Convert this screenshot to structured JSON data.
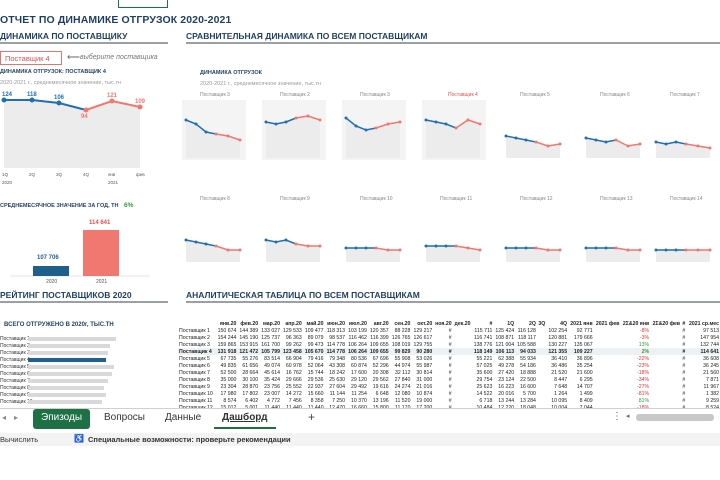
{
  "title": "ОТЧЕТ ПО ДИНАМИКЕ ОТГРУЗОК 2020-2021",
  "left_section": "ДИНАМИКА ПО ПОСТАВЩИКУ",
  "right_section": "СРАВНИТЕЛЬНАЯ ДИНАМИКА ПО ВСЕМ ПОСТАВЩИКАМ",
  "selector": {
    "value": "Поставщик 4",
    "hint": "выберите поставщика"
  },
  "main_chart": {
    "title": "ДИНАМИКА ОТГРУЗОК: ПОСТАВЩИК 4",
    "subtitle": "2020-2021 г., среднемесячное значение, тыс.тн",
    "values": [
      "124",
      "118",
      "106",
      "94",
      "121",
      "109"
    ],
    "x": [
      "1Q",
      "2Q",
      "3Q",
      "4Q",
      "янв",
      "фев"
    ],
    "years": [
      "2020",
      "2021"
    ]
  },
  "small_charts_header": {
    "title": "ДИНАМИКА ОТГРУЗОК",
    "subtitle": "2020-2021 г., среднемесячное значение, тыс.тн"
  },
  "suppliers": [
    "Поставщик 3",
    "Поставщик 2",
    "Поставщик 3",
    "Поставщик 4",
    "Поставщик 5",
    "Поставщик 6",
    "Поставщик 7",
    "Поставщик 8",
    "Поставщик 9",
    "Поставщик 10",
    "Поставщик 11",
    "Поставщик 12",
    "Поставщик 13",
    "Поставщик 14"
  ],
  "bar_chart": {
    "title": "СРЕДНЕМЕСЯЧНОЕ ЗНАЧЕНИЕ ЗА ГОД, ТН",
    "change": "6%",
    "v2020": "107 706",
    "v2021": "114 641",
    "y2020": "2020",
    "y2021": "2021"
  },
  "rating": {
    "section": "РЕЙТИНГ ПОСТАВЩИКОВ 2020",
    "title": "ВСЕГО ОТГРУЖЕНО В 2020г, ТЫС.ТН",
    "items": [
      "Поставщик 1",
      "Поставщик 2",
      "Поставщик 3",
      "Поставщик 4",
      "Поставщик 5",
      "Поставщик 6",
      "Поставщик 7",
      "Поставщик 8",
      "Поставщик 9",
      "Поставщик 10"
    ]
  },
  "table": {
    "section": "АНАЛИТИЧЕСКАЯ ТАБЛИЦА ПО ВСЕМ ПОСТАВЩИКАМ",
    "headers": [
      "",
      "янв.20",
      "фев.20",
      "мар.20",
      "апр.20",
      "май.20",
      "июн.20",
      "июл.20",
      "авг.20",
      "сен.20",
      "окт.20",
      "ноя.20",
      "дек.20",
      "#",
      "1Q",
      "2Q",
      "3Q",
      "4Q",
      "2021 янв",
      "2021 фев",
      "2Σ&20 янв",
      "2Σ&20 фев",
      "#",
      "2021 ср.мес"
    ],
    "rows": [
      [
        "Поставщик 1",
        "150 674",
        "144 389",
        "133 027",
        "129 533",
        "109 477",
        "118 313",
        "103 199",
        "120 357",
        "88 228",
        "129 217",
        "#",
        "",
        "115 711",
        "125 424",
        "116 128",
        "",
        "102 254",
        "92 771",
        "",
        "-8%",
        "",
        "#",
        "97 513"
      ],
      [
        "Поставщик 2",
        "154 244",
        "145 190",
        "125 737",
        "96 363",
        "89 079",
        "98 537",
        "116 462",
        "116 399",
        "126 765",
        "126 617",
        "#",
        "",
        "116 741",
        "108 871",
        "118 117",
        "",
        "120 881",
        "179 666",
        "",
        "-3%",
        "",
        "#",
        "147 954"
      ],
      [
        "Поставщик 3",
        "159 865",
        "153 915",
        "161 700",
        "99 262",
        "99 473",
        "114 778",
        "106 264",
        "109 655",
        "108 019",
        "129 755",
        "#",
        "",
        "138 776",
        "121 004",
        "105 588",
        "",
        "130 227",
        "135 067",
        "",
        "13%",
        "",
        "#",
        "132 744"
      ],
      [
        "Поставщик 4",
        "131 918",
        "121 472",
        "105 799",
        "123 458",
        "105 670",
        "114 778",
        "106 264",
        "109 655",
        "99 829",
        "90 280",
        "#",
        "",
        "118 149",
        "106 113",
        "94 033",
        "",
        "121 355",
        "109 227",
        "",
        "2%",
        "",
        "#",
        "114 641"
      ],
      [
        "Поставщик 5",
        "67 735",
        "55 276",
        "83 514",
        "66 904",
        "79 416",
        "79 348",
        "80 536",
        "67 696",
        "55 908",
        "53 026",
        "#",
        "",
        "55 221",
        "62 388",
        "55 934",
        "",
        "36 410",
        "36 896",
        "",
        "-22%",
        "",
        "#",
        "36 608"
      ],
      [
        "Поставщик 6",
        "49 835",
        "61 656",
        "49 074",
        "60 978",
        "52 064",
        "43 308",
        "60 874",
        "52 296",
        "44 974",
        "55 987",
        "#",
        "",
        "57 025",
        "49 278",
        "54 186",
        "",
        "36 486",
        "35 254",
        "",
        "-23%",
        "",
        "#",
        "36 245"
      ],
      [
        "Поставщик 7",
        "52 500",
        "28 664",
        "45 614",
        "16 762",
        "15 744",
        "18 242",
        "17 600",
        "20 308",
        "32 112",
        "30 814",
        "#",
        "",
        "35 600",
        "27 420",
        "18 888",
        "",
        "21 520",
        "21 600",
        "",
        "-18%",
        "",
        "#",
        "21 560"
      ],
      [
        "Поставщик 8",
        "35 000",
        "30 100",
        "35 424",
        "29 666",
        "29 536",
        "25 630",
        "29 120",
        "29 562",
        "27 840",
        "31 000",
        "#",
        "",
        "29 754",
        "23 124",
        "22 500",
        "",
        "8 447",
        "6 295",
        "",
        "-34%",
        "",
        "#",
        "7 871"
      ],
      [
        "Поставщик 9",
        "23 304",
        "28 870",
        "23 756",
        "25 552",
        "22 937",
        "27 604",
        "29 492",
        "19 616",
        "24 274",
        "21 016",
        "#",
        "",
        "25 623",
        "16 223",
        "16 600",
        "",
        "7 648",
        "14 707",
        "",
        "-27%",
        "",
        "#",
        "11 967"
      ],
      [
        "Поставщик 10",
        "17 980",
        "17 802",
        "23 007",
        "14 272",
        "15 660",
        "11 144",
        "11 254",
        "6 648",
        "12 080",
        "10 874",
        "#",
        "",
        "14 522",
        "20 016",
        "5 700",
        "",
        "1 264",
        "1 499",
        "",
        "-81%",
        "",
        "#",
        "1 382"
      ],
      [
        "Поставщик 11",
        "8 574",
        "6 402",
        "4 772",
        "7 456",
        "8 358",
        "7 250",
        "10 370",
        "13 196",
        "11 520",
        "19 000",
        "#",
        "",
        "6 718",
        "13 244",
        "13 284",
        "",
        "10 095",
        "8 409",
        "",
        "81%",
        "",
        "#",
        "9 259"
      ],
      [
        "Поставщик 12",
        "15 012",
        "5 001",
        "11 440",
        "11 440",
        "11 440",
        "12 470",
        "16 660",
        "15 800",
        "11 170",
        "17 200",
        "#",
        "",
        "10 484",
        "12 220",
        "18 048",
        "",
        "10 004",
        "7 044",
        "",
        "-18%",
        "",
        "#",
        "8 524"
      ]
    ]
  },
  "tabs": [
    "Эпизоды",
    "Вопросы",
    "Данные",
    "Дашборд"
  ],
  "add_tab": "+",
  "status": {
    "left": "Вычислить",
    "accessibility": "Специальные возможности: проверьте рекомендации"
  }
}
